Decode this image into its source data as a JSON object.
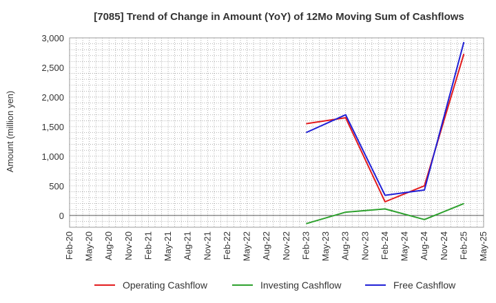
{
  "chart_data": {
    "type": "line",
    "title": "[7085]  Trend of Change in Amount (YoY) of 12Mo Moving Sum of Cashflows",
    "xlabel": "",
    "ylabel": "Amount (million yen)",
    "ylim": [
      -200,
      3000
    ],
    "yticks": [
      0,
      500,
      1000,
      1500,
      2000,
      2500,
      3000
    ],
    "ytick_labels": [
      "0",
      "500",
      "1,000",
      "1,500",
      "2,000",
      "2,500",
      "3,000"
    ],
    "xticks": [
      "Feb-20",
      "May-20",
      "Aug-20",
      "Nov-20",
      "Feb-21",
      "May-21",
      "Aug-21",
      "Nov-21",
      "Feb-22",
      "May-22",
      "Aug-22",
      "Nov-22",
      "Feb-23",
      "May-23",
      "Aug-23",
      "Nov-23",
      "Feb-24",
      "May-24",
      "Aug-24",
      "Nov-24",
      "Feb-25",
      "May-25"
    ],
    "grid": true,
    "legend_position": "bottom",
    "series": [
      {
        "name": "Operating Cashflow",
        "color": "#e31a1c",
        "x": [
          "Feb-23",
          "Aug-23",
          "Feb-24",
          "Aug-24",
          "Feb-25"
        ],
        "values": [
          1550,
          1650,
          230,
          500,
          2730
        ]
      },
      {
        "name": "Investing Cashflow",
        "color": "#2ca02c",
        "x": [
          "Feb-23",
          "Aug-23",
          "Feb-24",
          "Aug-24",
          "Feb-25"
        ],
        "values": [
          -140,
          55,
          110,
          -70,
          200
        ]
      },
      {
        "name": "Free Cashflow",
        "color": "#1f1fd6",
        "x": [
          "Feb-23",
          "Aug-23",
          "Feb-24",
          "Aug-24",
          "Feb-25"
        ],
        "values": [
          1400,
          1700,
          340,
          430,
          2930
        ]
      }
    ]
  }
}
